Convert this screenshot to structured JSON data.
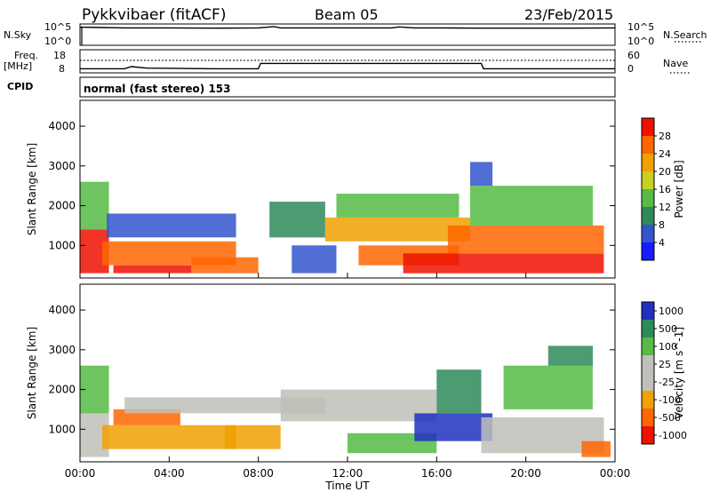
{
  "header": {
    "station": "Pykkvibaer (fitACF)",
    "beam": "Beam 05",
    "date": "23/Feb/2015"
  },
  "strip_panels": {
    "nsky": {
      "left_label": "N.Sky",
      "right_label": "N.Search",
      "left_ticks": [
        "10^5",
        "10^0"
      ],
      "right_ticks": [
        "10^5",
        "10^0"
      ]
    },
    "freq": {
      "left_label_line1": "Freq.",
      "left_label_line2": "[MHz]",
      "right_label": "Nave",
      "left_ticks": [
        "18",
        "8"
      ],
      "right_ticks": [
        "60",
        "0"
      ]
    },
    "cpid_label": "CPID",
    "cpid_text": "normal (fast stereo) 153"
  },
  "colors": {
    "power_scale": [
      "#1a1aff",
      "#3355cc",
      "#2e8a5a",
      "#55bb44",
      "#c8d020",
      "#f0a000",
      "#ff6600",
      "#ee1100"
    ],
    "velocity_scale": [
      "#ee1100",
      "#ff6600",
      "#f0a000",
      "#c0c0b8",
      "#c0c0b8",
      "#55bb44",
      "#2e8a5a",
      "#2030c0"
    ]
  },
  "chart_data": [
    {
      "type": "line",
      "name": "nsky-nsearch",
      "x": [
        0,
        1,
        2,
        4,
        6,
        8,
        8.7,
        9,
        10,
        12,
        14,
        14.3,
        15,
        16,
        18,
        20,
        22,
        24
      ],
      "y_log": [
        5.1,
        5.0,
        4.9,
        4.9,
        4.8,
        4.9,
        5.3,
        4.9,
        4.9,
        4.9,
        4.9,
        5.2,
        4.9,
        4.9,
        4.8,
        4.8,
        4.8,
        4.9
      ],
      "ylim": [
        0,
        5
      ]
    },
    {
      "type": "line",
      "name": "frequency",
      "x": [
        0,
        2,
        2.3,
        3,
        6,
        8,
        8.1,
        12,
        16,
        18,
        18.1,
        20,
        24
      ],
      "y": [
        9.5,
        9.5,
        10.5,
        9.8,
        9.5,
        9.5,
        12,
        12,
        12,
        12,
        9.5,
        9.5,
        9.5
      ],
      "ylim": [
        8,
        18
      ]
    },
    {
      "type": "heatmap",
      "name": "power",
      "title": "",
      "xlabel": "",
      "ylabel": "Slant Range [km]",
      "colorbar_label": "Power [dB]",
      "colorbar_ticks": [
        "4",
        "8",
        "12",
        "16",
        "20",
        "24",
        "28"
      ],
      "x_ticks": [
        "00:00",
        "04:00",
        "08:00",
        "12:00",
        "16:00",
        "20:00",
        "00:00"
      ],
      "y_ticks": [
        "1000",
        "2000",
        "3000",
        "4000"
      ],
      "xlim": [
        0,
        24
      ],
      "ylim": [
        180,
        4650
      ],
      "regions": [
        {
          "t0": 0.0,
          "t1": 1.3,
          "r0": 300,
          "r1": 1400,
          "level": 7
        },
        {
          "t0": 0.0,
          "t1": 1.3,
          "r0": 1400,
          "r1": 2600,
          "level": 3
        },
        {
          "t0": 1.0,
          "t1": 7.0,
          "r0": 500,
          "r1": 1100,
          "level": 6
        },
        {
          "t0": 1.2,
          "t1": 7.0,
          "r0": 1200,
          "r1": 1800,
          "level": 1
        },
        {
          "t0": 1.5,
          "t1": 5.0,
          "r0": 300,
          "r1": 500,
          "level": 7
        },
        {
          "t0": 5.0,
          "t1": 8.0,
          "r0": 300,
          "r1": 700,
          "level": 6
        },
        {
          "t0": 8.5,
          "t1": 11.0,
          "r0": 1200,
          "r1": 2100,
          "level": 2
        },
        {
          "t0": 9.5,
          "t1": 11.5,
          "r0": 300,
          "r1": 1000,
          "level": 1
        },
        {
          "t0": 11.0,
          "t1": 17.5,
          "r0": 1100,
          "r1": 1700,
          "level": 5
        },
        {
          "t0": 11.5,
          "t1": 17.0,
          "r0": 1700,
          "r1": 2300,
          "level": 3
        },
        {
          "t0": 12.5,
          "t1": 17.0,
          "r0": 500,
          "r1": 1000,
          "level": 6
        },
        {
          "t0": 14.5,
          "t1": 23.5,
          "r0": 300,
          "r1": 800,
          "level": 7
        },
        {
          "t0": 16.5,
          "t1": 23.5,
          "r0": 800,
          "r1": 1500,
          "level": 6
        },
        {
          "t0": 17.5,
          "t1": 23.0,
          "r0": 1500,
          "r1": 2500,
          "level": 3
        },
        {
          "t0": 17.5,
          "t1": 18.5,
          "r0": 2500,
          "r1": 3100,
          "level": 1
        }
      ]
    },
    {
      "type": "heatmap",
      "name": "velocity",
      "title": "",
      "xlabel": "Time UT",
      "ylabel": "Slant Range [km]",
      "colorbar_label": "Velocity [m s^-1]",
      "colorbar_ticks": [
        "-1000",
        "-500",
        "-100",
        "-25",
        "25",
        "100",
        "500",
        "1000"
      ],
      "x_ticks": [
        "00:00",
        "04:00",
        "08:00",
        "12:00",
        "16:00",
        "20:00",
        "00:00"
      ],
      "y_ticks": [
        "1000",
        "2000",
        "3000",
        "4000"
      ],
      "xlim": [
        0,
        24
      ],
      "ylim": [
        180,
        4650
      ],
      "regions": [
        {
          "t0": 0.0,
          "t1": 1.3,
          "r0": 300,
          "r1": 1400,
          "level": 4
        },
        {
          "t0": 0.0,
          "t1": 1.3,
          "r0": 1400,
          "r1": 2600,
          "level": 5
        },
        {
          "t0": 1.0,
          "t1": 7.0,
          "r0": 500,
          "r1": 1100,
          "level": 2
        },
        {
          "t0": 1.5,
          "t1": 4.5,
          "r0": 1100,
          "r1": 1500,
          "level": 1
        },
        {
          "t0": 2.0,
          "t1": 11.0,
          "r0": 1400,
          "r1": 1800,
          "level": 3
        },
        {
          "t0": 6.5,
          "t1": 9.0,
          "r0": 500,
          "r1": 1100,
          "level": 2
        },
        {
          "t0": 9.0,
          "t1": 16.0,
          "r0": 1200,
          "r1": 2000,
          "level": 3
        },
        {
          "t0": 12.0,
          "t1": 16.0,
          "r0": 400,
          "r1": 900,
          "level": 5
        },
        {
          "t0": 15.0,
          "t1": 18.5,
          "r0": 700,
          "r1": 1400,
          "level": 7
        },
        {
          "t0": 16.0,
          "t1": 18.0,
          "r0": 1400,
          "r1": 2500,
          "level": 6
        },
        {
          "t0": 18.0,
          "t1": 23.5,
          "r0": 400,
          "r1": 1300,
          "level": 4
        },
        {
          "t0": 19.0,
          "t1": 23.0,
          "r0": 1500,
          "r1": 2600,
          "level": 5
        },
        {
          "t0": 21.0,
          "t1": 23.0,
          "r0": 2600,
          "r1": 3100,
          "level": 6
        },
        {
          "t0": 22.5,
          "t1": 23.8,
          "r0": 300,
          "r1": 700,
          "level": 1
        }
      ]
    }
  ]
}
